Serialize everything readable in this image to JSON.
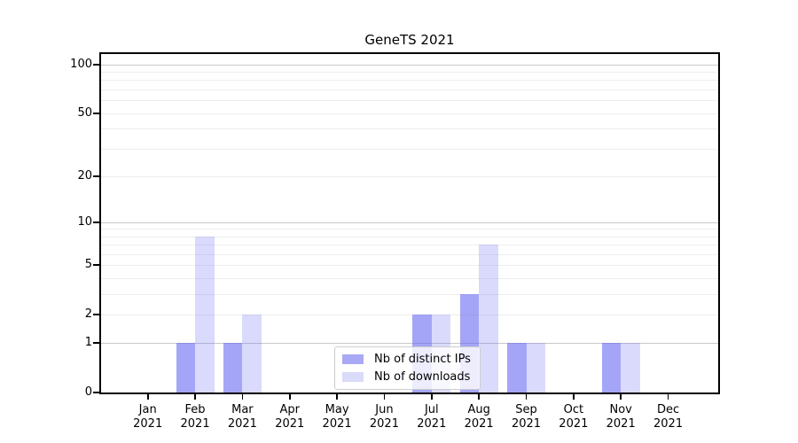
{
  "chart_data": {
    "type": "bar",
    "title": "GeneTS 2021",
    "categories": [
      {
        "month": "Jan",
        "year": "2021"
      },
      {
        "month": "Feb",
        "year": "2021"
      },
      {
        "month": "Mar",
        "year": "2021"
      },
      {
        "month": "Apr",
        "year": "2021"
      },
      {
        "month": "May",
        "year": "2021"
      },
      {
        "month": "Jun",
        "year": "2021"
      },
      {
        "month": "Jul",
        "year": "2021"
      },
      {
        "month": "Aug",
        "year": "2021"
      },
      {
        "month": "Sep",
        "year": "2021"
      },
      {
        "month": "Oct",
        "year": "2021"
      },
      {
        "month": "Nov",
        "year": "2021"
      },
      {
        "month": "Dec",
        "year": "2021"
      }
    ],
    "series": [
      {
        "name": "Nb of distinct IPs",
        "values": [
          0,
          1,
          1,
          0,
          0,
          0,
          2,
          3,
          1,
          0,
          1,
          0
        ],
        "fill": "rgba(100,100,242,0.58)",
        "swatch_color": "#a9a9f6"
      },
      {
        "name": "Nb of downloads",
        "values": [
          0,
          8,
          2,
          0,
          0,
          0,
          2,
          7,
          1,
          0,
          1,
          0
        ],
        "fill": "rgba(100,100,242,0.24)",
        "swatch_color": "#dadaf9"
      }
    ],
    "yscale": "log1p",
    "ylim": [
      0,
      116
    ],
    "ytick_labels": [
      "0",
      "1",
      "2",
      "5",
      "10",
      "20",
      "50",
      "100"
    ],
    "yticks": [
      0,
      1,
      2,
      5,
      10,
      20,
      50,
      100
    ],
    "major_grid_values": [
      1,
      10,
      100
    ],
    "minor_grid_values": [
      2,
      3,
      4,
      5,
      6,
      7,
      8,
      9,
      20,
      30,
      40,
      50,
      60,
      70,
      80,
      90
    ],
    "major_grid_color": "#c9c9c9",
    "minor_grid_color": "#ededed",
    "grid": "horizontal",
    "legend_position": "inside lower-center",
    "xlabel": "",
    "ylabel": ""
  }
}
